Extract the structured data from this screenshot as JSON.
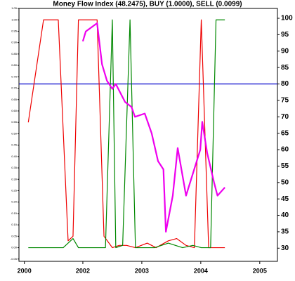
{
  "chart_data": {
    "type": "line",
    "title": "Money Flow Index (48.2475), BUY (1.0000), SELL (0.0099)",
    "xlim": [
      0,
      52.6
    ],
    "xticks": [
      {
        "value": 1.1,
        "label": "2000"
      },
      {
        "value": 13,
        "label": "2002"
      },
      {
        "value": 25,
        "label": "2003"
      },
      {
        "value": 37,
        "label": "2004"
      },
      {
        "value": 49,
        "label": "2005"
      }
    ],
    "ylim": [
      -0.06,
      1.05
    ],
    "yticks": [
      {
        "value": -0.05,
        "label": "-0.05"
      },
      {
        "value": 0,
        "label": "0.00"
      },
      {
        "value": 0.05,
        "label": "0.05"
      },
      {
        "value": 0.1,
        "label": "0.10"
      },
      {
        "value": 0.15,
        "label": "0.15"
      },
      {
        "value": 0.2,
        "label": "0.20"
      },
      {
        "value": 0.25,
        "label": "0.25"
      },
      {
        "value": 0.3,
        "label": "0.30"
      },
      {
        "value": 0.35,
        "label": "0.35"
      },
      {
        "value": 0.4,
        "label": "0.40"
      },
      {
        "value": 0.45,
        "label": "0.45"
      },
      {
        "value": 0.5,
        "label": "0.50"
      },
      {
        "value": 0.55,
        "label": "0.55"
      },
      {
        "value": 0.6,
        "label": "0.60"
      },
      {
        "value": 0.65,
        "label": "0.65"
      },
      {
        "value": 0.7,
        "label": "0.70"
      },
      {
        "value": 0.75,
        "label": "0.75"
      },
      {
        "value": 0.8,
        "label": "0.80"
      },
      {
        "value": 0.85,
        "label": "0.85"
      },
      {
        "value": 0.9,
        "label": "0.90"
      },
      {
        "value": 0.95,
        "label": "0.95"
      },
      {
        "value": 1,
        "label": "1.00"
      },
      {
        "value": 1.05,
        "label": "1.05"
      }
    ],
    "y2lim": [
      26,
      103
    ],
    "y2ticks": [
      30,
      35,
      40,
      45,
      50,
      55,
      60,
      65,
      70,
      75,
      80,
      85,
      90,
      95,
      100
    ],
    "reference_line": {
      "value": 80,
      "axis": "y2",
      "color": "#0000cc"
    },
    "series": [
      {
        "color": "#ee0000",
        "x": [
          1.9,
          5,
          8,
          10,
          11,
          12.1,
          15.9,
          17.3,
          19,
          20.4,
          21.9,
          23.7,
          26.1,
          27.9,
          30.4,
          32.1,
          34,
          35.7,
          37.1,
          38.6,
          41.9
        ],
        "values": [
          0.55,
          1,
          1,
          0.03,
          0.05,
          1,
          1,
          0.05,
          0,
          0.01,
          0.01,
          0,
          0.02,
          0,
          0.03,
          0.04,
          0.01,
          0,
          1,
          0,
          0
        ]
      },
      {
        "color": "#008800",
        "x": [
          1.9,
          9,
          11,
          12.1,
          17.6,
          19,
          19.7,
          21.1,
          22.6,
          23.7,
          27.6,
          30.4,
          33.3,
          35.4,
          37.1,
          39,
          40.1,
          41.9
        ],
        "values": [
          0,
          0,
          0.04,
          0,
          0,
          1,
          0,
          0.01,
          1,
          0,
          0,
          0.02,
          0,
          0.01,
          0,
          0,
          1,
          1
        ]
      },
      {
        "color": "#ee00ee",
        "axis": "y2",
        "x": [
          13,
          13.6,
          15.9,
          16.9,
          17.9,
          19,
          19.7,
          21.6,
          22.9,
          23.6,
          25.6,
          27,
          28.3,
          29.4,
          29.9,
          31.3,
          32.3,
          34,
          36.9,
          37.3,
          38.3,
          39.7,
          40.4,
          41.9
        ],
        "values": [
          93,
          96,
          98.5,
          86,
          81,
          78.5,
          80,
          74.5,
          73,
          70,
          71,
          65,
          56.5,
          54,
          35,
          46,
          60.5,
          46,
          60,
          68.5,
          59,
          50,
          46,
          48.5
        ]
      }
    ]
  }
}
